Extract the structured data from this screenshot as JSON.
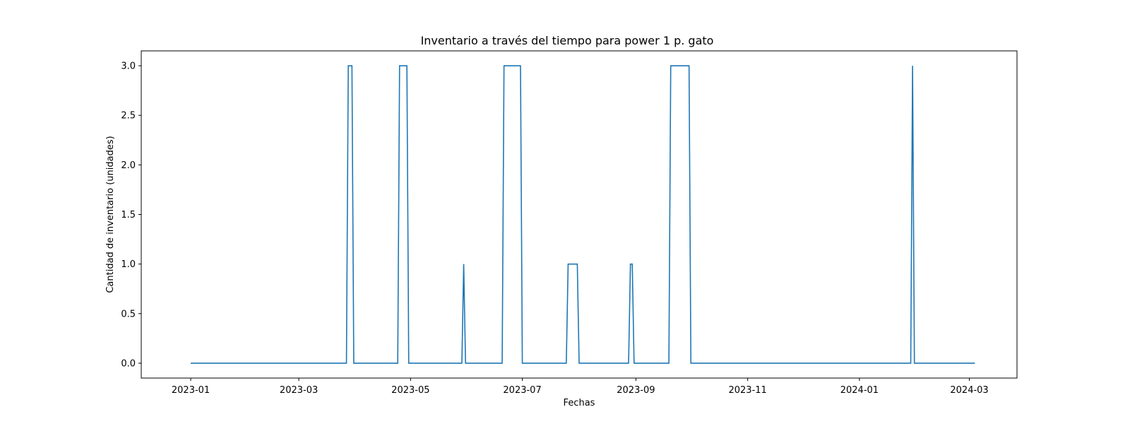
{
  "chart_data": {
    "type": "line",
    "title": "Inventario a través del tiempo para power 1 p.  gato",
    "xlabel": "Fechas",
    "ylabel": "Cantidad de inventario (unidades)",
    "x_axis_type": "date",
    "xlim": [
      "2022-12-05",
      "2024-03-27"
    ],
    "ylim": [
      -0.15,
      3.15
    ],
    "grid": false,
    "legend": "none",
    "line_color": "#1f77b4",
    "x_ticks": [
      "2023-01",
      "2023-03",
      "2023-05",
      "2023-07",
      "2023-09",
      "2023-11",
      "2024-01",
      "2024-03"
    ],
    "y_ticks": [
      0.0,
      0.5,
      1.0,
      1.5,
      2.0,
      2.5,
      3.0
    ],
    "y_tick_labels": [
      "0.0",
      "0.5",
      "1.0",
      "1.5",
      "2.0",
      "2.5",
      "3.0"
    ],
    "series": [
      {
        "name": "",
        "color": "#1f77b4",
        "x": [
          "2023-01-01",
          "2023-03-27",
          "2023-03-28",
          "2023-03-30",
          "2023-03-31",
          "2023-04-24",
          "2023-04-25",
          "2023-04-29",
          "2023-04-30",
          "2023-05-29",
          "2023-05-30",
          "2023-05-31",
          "2023-06-20",
          "2023-06-21",
          "2023-06-30",
          "2023-07-01",
          "2023-07-25",
          "2023-07-26",
          "2023-07-31",
          "2023-08-01",
          "2023-08-28",
          "2023-08-29",
          "2023-08-30",
          "2023-08-31",
          "2023-09-19",
          "2023-09-20",
          "2023-09-30",
          "2023-10-01",
          "2024-01-29",
          "2024-01-30",
          "2024-01-31",
          "2024-03-04"
        ],
        "y": [
          0,
          0,
          3,
          3,
          0,
          0,
          3,
          3,
          0,
          0,
          1,
          0,
          0,
          3,
          3,
          0,
          0,
          1,
          1,
          0,
          0,
          1,
          1,
          0,
          0,
          3,
          3,
          0,
          0,
          3,
          0,
          0
        ]
      }
    ]
  }
}
